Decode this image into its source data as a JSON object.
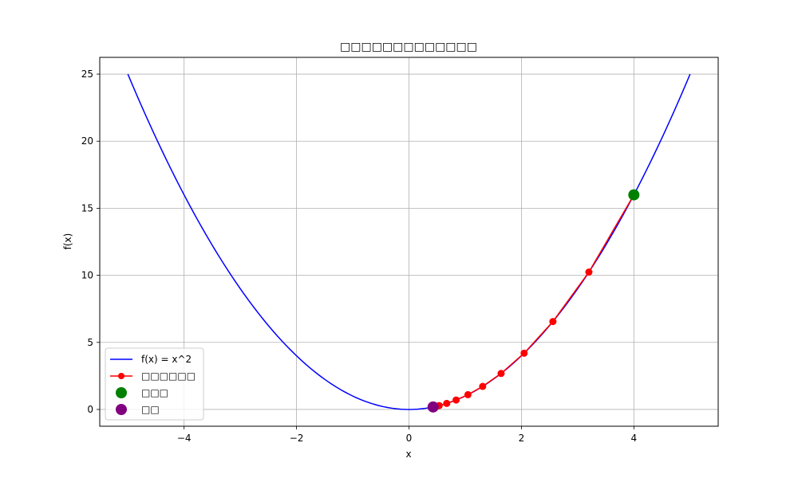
{
  "chart_data": {
    "type": "line",
    "title": "□□□□□□□□□□□□□",
    "xlabel": "x",
    "ylabel": "f(x)",
    "xlim": [
      -5.5,
      5.5
    ],
    "ylim": [
      -1.25,
      26.25
    ],
    "xticks": [
      -4,
      -2,
      0,
      2,
      4
    ],
    "xtick_labels": [
      "−4",
      "−2",
      "0",
      "2",
      "4"
    ],
    "yticks": [
      0,
      5,
      10,
      15,
      20,
      25
    ],
    "ytick_labels": [
      "0",
      "5",
      "10",
      "15",
      "20",
      "25"
    ],
    "grid": true,
    "legend_position": "lower-left",
    "series": [
      {
        "name": "f(x) = x^2",
        "kind": "line",
        "color": "#0000ff",
        "function": "x^2",
        "x_range": [
          -5,
          5
        ]
      },
      {
        "name": "□□□□□□",
        "kind": "line-markers",
        "color": "#ff0000",
        "x": [
          4.0,
          3.2,
          2.56,
          2.048,
          1.6384,
          1.3107,
          1.0486,
          0.8389,
          0.6711,
          0.5369
        ],
        "y": [
          16.0,
          10.24,
          6.554,
          4.194,
          2.684,
          1.718,
          1.1,
          0.704,
          0.45,
          0.288
        ]
      },
      {
        "name": "□□□",
        "kind": "point",
        "color": "#008000",
        "x": [
          4.0
        ],
        "y": [
          16.0
        ]
      },
      {
        "name": "□□",
        "kind": "point",
        "color": "#800080",
        "x": [
          0.4295
        ],
        "y": [
          0.1845
        ]
      }
    ]
  }
}
